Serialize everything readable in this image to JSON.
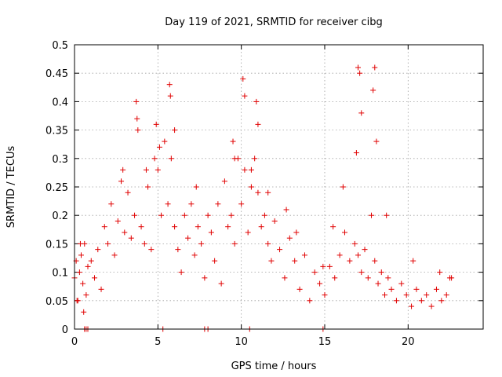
{
  "chart_data": {
    "type": "scatter",
    "title": "Day 119 of 2021, SRMTID for receiver cibg",
    "xlabel": "GPS time / hours",
    "ylabel": "SRMTID / TECUs",
    "xlim": [
      0,
      24.5
    ],
    "ylim": [
      0,
      0.5
    ],
    "xticks": [
      0,
      5,
      10,
      15,
      20
    ],
    "xtick_labels": [
      "0",
      "5",
      "10",
      "15",
      "20"
    ],
    "yticks": [
      0,
      0.05,
      0.1,
      0.15,
      0.2,
      0.25,
      0.3,
      0.35,
      0.4,
      0.45,
      0.5
    ],
    "ytick_labels": [
      "0",
      "0.05",
      "0.1",
      "0.15",
      "0.2",
      "0.25",
      "0.3",
      "0.35",
      "0.4",
      "0.45",
      "0.5"
    ],
    "grid": true,
    "legend": "none",
    "series": [
      {
        "name": "SRMTID",
        "marker": "plus",
        "color": "#e00000",
        "x": [
          0.0,
          0.1,
          0.2,
          0.3,
          0.4,
          0.5,
          0.6,
          0.7,
          0.8,
          1.0,
          1.2,
          1.4,
          1.6,
          1.8,
          2.0,
          2.2,
          2.4,
          2.6,
          2.8,
          3.0,
          3.2,
          3.4,
          3.6,
          3.8,
          4.0,
          4.2,
          4.4,
          4.6,
          4.8,
          5.0,
          5.2,
          5.4,
          5.6,
          5.8,
          6.0,
          6.2,
          6.4,
          6.6,
          6.8,
          7.0,
          7.2,
          7.4,
          7.6,
          7.8,
          8.0,
          8.2,
          8.4,
          8.6,
          8.8,
          9.0,
          9.2,
          9.4,
          9.6,
          9.8,
          10.0,
          10.2,
          10.4,
          10.6,
          10.8,
          11.0,
          11.2,
          11.4,
          11.6,
          11.8,
          12.0,
          12.3,
          12.6,
          12.9,
          13.2,
          13.5,
          13.8,
          14.1,
          14.4,
          14.7,
          15.0,
          15.3,
          15.6,
          15.9,
          16.2,
          16.5,
          16.8,
          17.0,
          17.2,
          17.4,
          17.6,
          17.8,
          18.0,
          18.2,
          18.4,
          18.6,
          18.8,
          19.0,
          19.3,
          19.6,
          19.9,
          20.2,
          20.5,
          20.8,
          21.1,
          21.4,
          21.7,
          22.0,
          22.3,
          22.6,
          0.15,
          0.35,
          0.55,
          2.9,
          3.7,
          3.75,
          4.3,
          4.9,
          5.1,
          5.7,
          5.75,
          6.0,
          7.3,
          9.5,
          9.6,
          10.1,
          10.2,
          10.6,
          10.9,
          11.0,
          11.6,
          12.7,
          13.3,
          14.9,
          15.5,
          16.1,
          16.9,
          17.0,
          17.1,
          17.2,
          17.9,
          18.0,
          18.1,
          18.7,
          20.3,
          21.9,
          22.5,
          0.6,
          0.7,
          0.8,
          5.3,
          7.8,
          8.0,
          10.5,
          14.9
        ],
        "y": [
          0.09,
          0.12,
          0.05,
          0.1,
          0.13,
          0.08,
          0.15,
          0.06,
          0.11,
          0.12,
          0.09,
          0.14,
          0.07,
          0.18,
          0.15,
          0.22,
          0.13,
          0.19,
          0.26,
          0.17,
          0.24,
          0.16,
          0.2,
          0.35,
          0.18,
          0.15,
          0.25,
          0.14,
          0.3,
          0.28,
          0.2,
          0.33,
          0.22,
          0.3,
          0.18,
          0.14,
          0.1,
          0.2,
          0.16,
          0.22,
          0.13,
          0.18,
          0.15,
          0.09,
          0.2,
          0.17,
          0.12,
          0.22,
          0.08,
          0.26,
          0.18,
          0.2,
          0.15,
          0.3,
          0.22,
          0.28,
          0.17,
          0.25,
          0.3,
          0.24,
          0.18,
          0.2,
          0.15,
          0.12,
          0.19,
          0.14,
          0.09,
          0.16,
          0.12,
          0.07,
          0.13,
          0.05,
          0.1,
          0.08,
          0.06,
          0.11,
          0.09,
          0.13,
          0.17,
          0.12,
          0.15,
          0.13,
          0.1,
          0.14,
          0.09,
          0.2,
          0.12,
          0.08,
          0.1,
          0.06,
          0.09,
          0.07,
          0.05,
          0.08,
          0.06,
          0.04,
          0.07,
          0.05,
          0.06,
          0.04,
          0.07,
          0.05,
          0.06,
          0.09,
          0.05,
          0.15,
          0.03,
          0.28,
          0.4,
          0.37,
          0.28,
          0.36,
          0.32,
          0.43,
          0.41,
          0.35,
          0.25,
          0.33,
          0.3,
          0.44,
          0.41,
          0.28,
          0.4,
          0.36,
          0.24,
          0.21,
          0.17,
          0.11,
          0.18,
          0.25,
          0.31,
          0.46,
          0.45,
          0.38,
          0.42,
          0.46,
          0.33,
          0.2,
          0.12,
          0.1,
          0.09,
          0.0,
          0.0,
          0.0,
          0.0,
          0.0,
          0.0,
          0.0,
          0.0
        ]
      }
    ]
  }
}
